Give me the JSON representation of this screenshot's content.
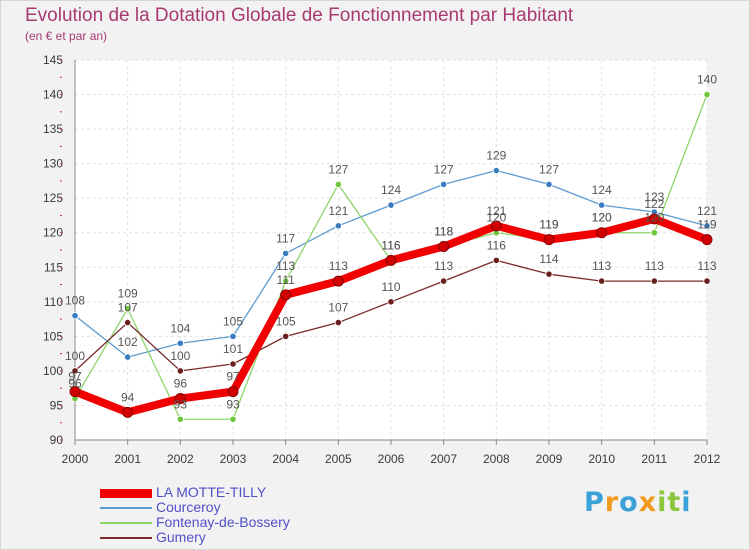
{
  "chart_data": {
    "type": "line",
    "title": "Evolution de la Dotation Globale de Fonctionnement par Habitant",
    "subtitle": "(en € et par an)",
    "xlabel": "",
    "ylabel": "",
    "ylim": [
      90,
      145
    ],
    "yticks": [
      90,
      95,
      100,
      105,
      110,
      115,
      120,
      125,
      130,
      135,
      140,
      145
    ],
    "x": [
      2000,
      2001,
      2002,
      2003,
      2004,
      2005,
      2006,
      2007,
      2008,
      2009,
      2010,
      2011,
      2012
    ],
    "grid": true,
    "legend_position": "bottom-left",
    "series": [
      {
        "name": "Courceroy",
        "color": "#5b9bd0",
        "marker": "#3a7cc0",
        "values": [
          108,
          102,
          104,
          105,
          117,
          121,
          124,
          127,
          129,
          127,
          124,
          123,
          121
        ]
      },
      {
        "name": "Fontenay-de-Bossery",
        "color": "#8ed46a",
        "marker": "#6cc83a",
        "values": [
          96,
          109,
          93,
          93,
          113,
          127,
          116,
          118,
          120,
          119,
          120,
          120,
          140
        ]
      },
      {
        "name": "Gumery",
        "color": "#7a2a2a",
        "marker": "#6a1e1e",
        "values": [
          100,
          107,
          100,
          101,
          105,
          107,
          110,
          113,
          116,
          114,
          113,
          113,
          113
        ]
      },
      {
        "name": "LA MOTTE-TILLY",
        "color": "#f00000",
        "marker": "#d00000",
        "values": [
          97,
          94,
          96,
          97,
          111,
          113,
          116,
          118,
          121,
          119,
          120,
          122,
          119
        ]
      }
    ],
    "legend_order": [
      "LA MOTTE-TILLY",
      "Courceroy",
      "Fontenay-de-Bossery",
      "Gumery"
    ]
  },
  "brand": {
    "name": "Proxiti",
    "letters": [
      "P",
      "r",
      "o",
      "x",
      "i",
      "t",
      "i"
    ],
    "colors": [
      "#3aa0d8",
      "#f29a1e",
      "#3aa0d8",
      "#f29a1e",
      "#8cc63e",
      "#8cc63e",
      "#3aa0d8"
    ]
  }
}
